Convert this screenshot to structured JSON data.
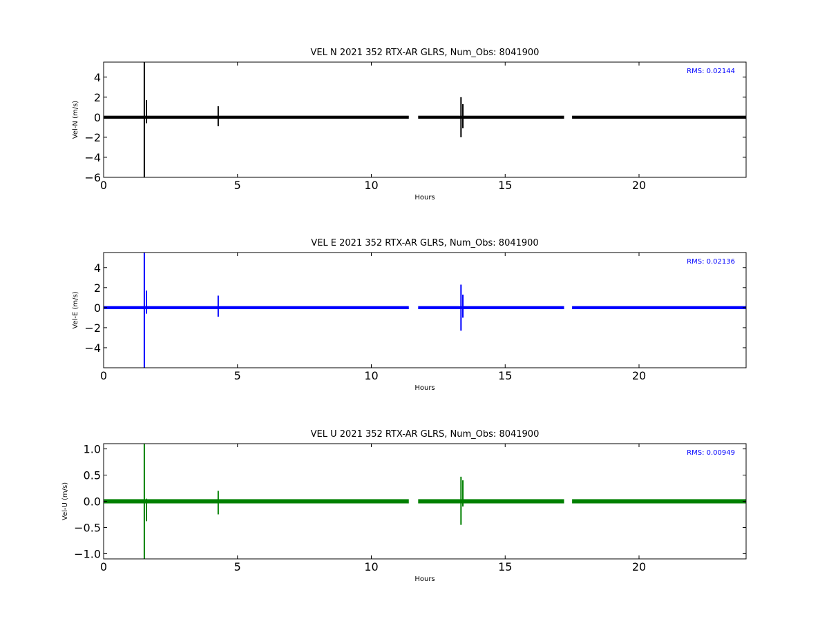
{
  "chart_data": [
    {
      "type": "line",
      "title": "VEL N 2021 352 RTX-AR  GLRS, Num_Obs: 8041900",
      "xlabel": "Hours",
      "ylabel": "Vel-N (m/s)",
      "xlim": [
        0,
        24
      ],
      "ylim": [
        -6,
        5.5
      ],
      "xticks": [
        0,
        5,
        10,
        15,
        20
      ],
      "yticks": [
        -6,
        -4,
        -2,
        0,
        2,
        4
      ],
      "ytick_labels": [
        "−6",
        "−4",
        "−2",
        "0",
        "2",
        "4"
      ],
      "annotation": "RMS:  0.02144",
      "color": "#000000",
      "noise_band": 0.15,
      "segments": [
        [
          0,
          11.4
        ],
        [
          11.75,
          17.2
        ],
        [
          17.5,
          24
        ]
      ],
      "spikes": [
        {
          "x": 1.52,
          "ymin": -6,
          "ymax": 5.5
        },
        {
          "x": 1.6,
          "ymin": -0.6,
          "ymax": 1.7
        },
        {
          "x": 4.28,
          "ymin": -0.9,
          "ymax": 1.1
        },
        {
          "x": 13.35,
          "ymin": -2.0,
          "ymax": 2.0
        },
        {
          "x": 13.42,
          "ymin": -1.1,
          "ymax": 1.3
        }
      ]
    },
    {
      "type": "line",
      "title": "VEL E 2021 352 RTX-AR  GLRS, Num_Obs: 8041900",
      "xlabel": "Hours",
      "ylabel": "Vel-E (m/s)",
      "xlim": [
        0,
        24
      ],
      "ylim": [
        -6,
        5.5
      ],
      "xticks": [
        0,
        5,
        10,
        15,
        20
      ],
      "yticks": [
        -4,
        -2,
        0,
        2,
        4
      ],
      "ytick_labels": [
        "−4",
        "−2",
        "0",
        "2",
        "4"
      ],
      "annotation": "RMS:  0.02136",
      "color": "#0000ff",
      "noise_band": 0.15,
      "segments": [
        [
          0,
          11.4
        ],
        [
          11.75,
          17.2
        ],
        [
          17.5,
          24
        ]
      ],
      "spikes": [
        {
          "x": 1.52,
          "ymin": -6,
          "ymax": 5.5
        },
        {
          "x": 1.6,
          "ymin": -0.6,
          "ymax": 1.7
        },
        {
          "x": 4.28,
          "ymin": -0.9,
          "ymax": 1.2
        },
        {
          "x": 13.35,
          "ymin": -2.3,
          "ymax": 2.3
        },
        {
          "x": 13.42,
          "ymin": -1.0,
          "ymax": 1.3
        }
      ]
    },
    {
      "type": "line",
      "title": "VEL U 2021 352 RTX-AR  GLRS, Num_Obs: 8041900",
      "xlabel": "Hours",
      "ylabel": "Vel-U (m/s)",
      "xlim": [
        0,
        24
      ],
      "ylim": [
        -1.1,
        1.1
      ],
      "xticks": [
        0,
        5,
        10,
        15,
        20
      ],
      "yticks": [
        -1.0,
        -0.5,
        0.0,
        0.5,
        1.0
      ],
      "ytick_labels": [
        "−1.0",
        "−0.5",
        "0.0",
        "0.5",
        "1.0"
      ],
      "annotation": "RMS:  0.00949",
      "color": "#008000",
      "noise_band": 0.04,
      "segments": [
        [
          0,
          11.4
        ],
        [
          11.75,
          17.2
        ],
        [
          17.5,
          24
        ]
      ],
      "spikes": [
        {
          "x": 1.52,
          "ymin": -1.1,
          "ymax": 1.1
        },
        {
          "x": 1.6,
          "ymin": -0.38,
          "ymax": 0.05
        },
        {
          "x": 4.28,
          "ymin": -0.25,
          "ymax": 0.2
        },
        {
          "x": 13.35,
          "ymin": -0.45,
          "ymax": 0.47
        },
        {
          "x": 13.42,
          "ymin": -0.1,
          "ymax": 0.4
        }
      ]
    }
  ]
}
